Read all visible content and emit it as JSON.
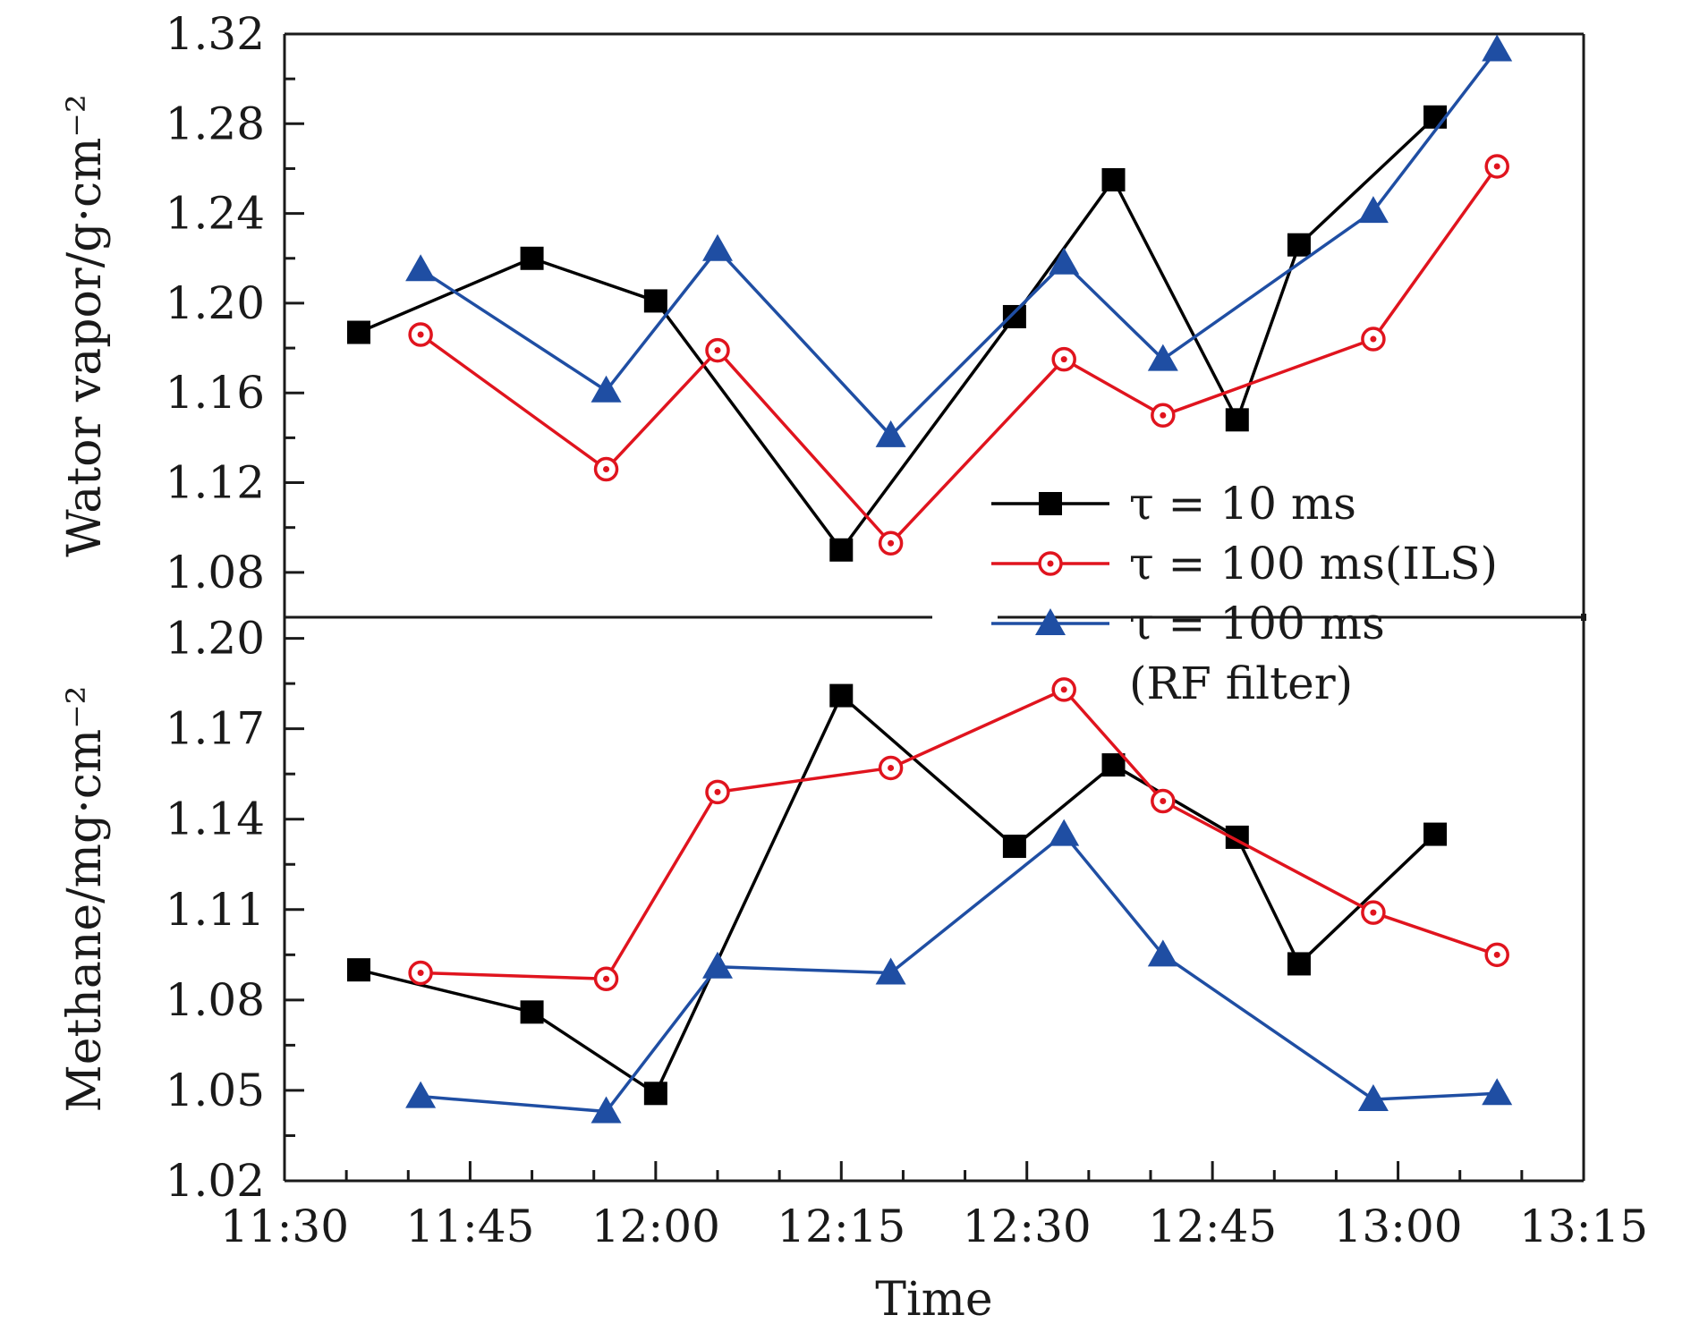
{
  "chart_data": {
    "type": "line",
    "x_label": "Time",
    "x_ticks": [
      "11:30",
      "11:45",
      "12:00",
      "12:15",
      "12:30",
      "12:45",
      "13:00",
      "13:15"
    ],
    "xlim": [
      "11:30",
      "13:15"
    ],
    "legend": {
      "placement": "right, between panels",
      "entries": [
        {
          "label": "τ = 10 ms",
          "series": "tau10"
        },
        {
          "label": "τ = 100 ms(ILS)",
          "series": "tau100_ils"
        },
        {
          "label": "τ = 100 ms",
          "label2": "(RF filter)",
          "series": "tau100_rf"
        }
      ]
    },
    "styles": {
      "tau10": {
        "color": "#000000",
        "marker": "square"
      },
      "tau100_ils": {
        "color": "#e0141e",
        "marker": "circle-dot"
      },
      "tau100_rf": {
        "color": "#1f4ea3",
        "marker": "triangle"
      }
    },
    "panels": [
      {
        "id": "water",
        "ylabel": "Wator vapor/g·cm⁻²",
        "ylim": [
          1.06,
          1.32
        ],
        "y_ticks": [
          "1.08",
          "1.12",
          "1.16",
          "1.20",
          "1.24",
          "1.28",
          "1.32"
        ],
        "y_tick_values": [
          1.08,
          1.12,
          1.16,
          1.2,
          1.24,
          1.28,
          1.32
        ],
        "series": [
          {
            "key": "tau10",
            "points": [
              [
                "11:36",
                1.187
              ],
              [
                "11:50",
                1.22
              ],
              [
                "12:00",
                1.201
              ],
              [
                "12:15",
                1.09
              ],
              [
                "12:29",
                1.194
              ],
              [
                "12:37",
                1.255
              ],
              [
                "12:47",
                1.148
              ],
              [
                "12:52",
                1.226
              ],
              [
                "13:03",
                1.283
              ]
            ]
          },
          {
            "key": "tau100_ils",
            "points": [
              [
                "11:41",
                1.186
              ],
              [
                "11:56",
                1.126
              ],
              [
                "12:05",
                1.179
              ],
              [
                "12:19",
                1.093
              ],
              [
                "12:33",
                1.175
              ],
              [
                "12:41",
                1.15
              ],
              [
                "12:58",
                1.184
              ],
              [
                "13:08",
                1.261
              ]
            ]
          },
          {
            "key": "tau100_rf",
            "points": [
              [
                "11:41",
                1.215
              ],
              [
                "11:56",
                1.161
              ],
              [
                "12:05",
                1.224
              ],
              [
                "12:19",
                1.141
              ],
              [
                "12:33",
                1.218
              ],
              [
                "12:41",
                1.175
              ],
              [
                "12:58",
                1.241
              ],
              [
                "13:08",
                1.313
              ]
            ]
          }
        ]
      },
      {
        "id": "methane",
        "ylabel": "Methane/mg·cm⁻²",
        "ylim": [
          1.02,
          1.207
        ],
        "y_ticks": [
          "1.02",
          "1.05",
          "1.08",
          "1.11",
          "1.14",
          "1.17",
          "1.20"
        ],
        "y_tick_values": [
          1.02,
          1.05,
          1.08,
          1.11,
          1.14,
          1.17,
          1.2
        ],
        "series": [
          {
            "key": "tau10",
            "points": [
              [
                "11:36",
                1.09
              ],
              [
                "11:50",
                1.076
              ],
              [
                "12:00",
                1.049
              ],
              [
                "12:15",
                1.181
              ],
              [
                "12:29",
                1.131
              ],
              [
                "12:37",
                1.158
              ],
              [
                "12:47",
                1.134
              ],
              [
                "12:52",
                1.092
              ],
              [
                "13:03",
                1.135
              ]
            ]
          },
          {
            "key": "tau100_ils",
            "points": [
              [
                "11:41",
                1.089
              ],
              [
                "11:56",
                1.087
              ],
              [
                "12:05",
                1.149
              ],
              [
                "12:19",
                1.157
              ],
              [
                "12:33",
                1.183
              ],
              [
                "12:41",
                1.146
              ],
              [
                "12:58",
                1.109
              ],
              [
                "13:08",
                1.095
              ]
            ]
          },
          {
            "key": "tau100_rf",
            "points": [
              [
                "11:41",
                1.048
              ],
              [
                "11:56",
                1.043
              ],
              [
                "12:05",
                1.091
              ],
              [
                "12:19",
                1.089
              ],
              [
                "12:33",
                1.135
              ],
              [
                "12:41",
                1.095
              ],
              [
                "12:58",
                1.047
              ],
              [
                "13:08",
                1.049
              ]
            ]
          }
        ]
      }
    ]
  }
}
